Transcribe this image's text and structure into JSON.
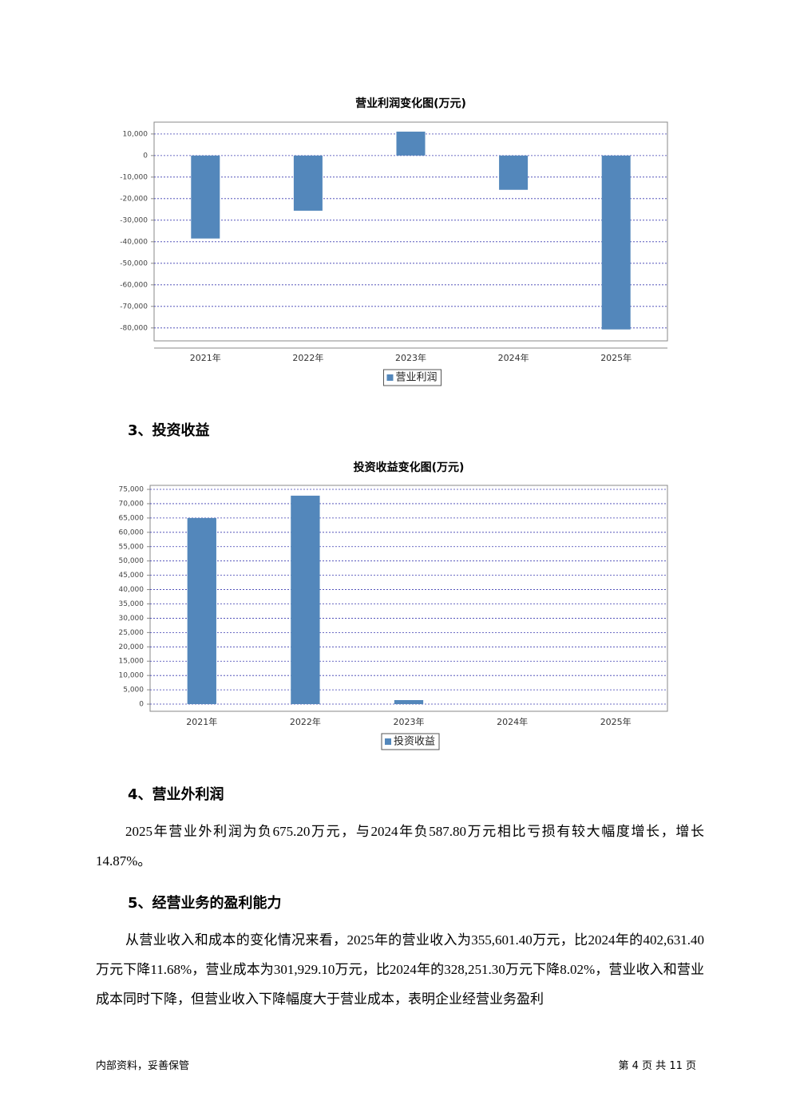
{
  "chart_data": [
    {
      "type": "bar",
      "title": "营业利润变化图(万元)",
      "categories": [
        "2021年",
        "2022年",
        "2023年",
        "2024年",
        "2025年"
      ],
      "series": [
        {
          "name": "营业利润",
          "color": "#5387bb",
          "values": [
            -38500,
            -25600,
            11100,
            -15900,
            -80700
          ]
        }
      ],
      "ylim": [
        -86000,
        15500
      ],
      "yticks": [
        {
          "value": 10000,
          "label": "10,000"
        },
        0,
        {
          "value": -10000,
          "label": "-10,000"
        },
        {
          "value": -20000,
          "label": "-20,000"
        },
        {
          "value": -30000,
          "label": "-30,000"
        },
        {
          "value": -40000,
          "label": "-40,000"
        },
        {
          "value": -50000,
          "label": "-50,000"
        },
        {
          "value": -60000,
          "label": "-60,000"
        },
        {
          "value": -70000,
          "label": "-70,000"
        },
        {
          "value": -80000,
          "label": "-80,000"
        }
      ],
      "grid": true
    },
    {
      "type": "bar",
      "title": "投资收益变化图(万元)",
      "categories": [
        "2021年",
        "2022年",
        "2023年",
        "2024年",
        "2025年"
      ],
      "series": [
        {
          "name": "投资收益",
          "color": "#5387bb",
          "values": [
            65000,
            72800,
            1400,
            0,
            0
          ]
        }
      ],
      "ylim": [
        -2500,
        76400
      ],
      "yticks": [
        0,
        {
          "value": 5000,
          "label": "5,000"
        },
        {
          "value": 10000,
          "label": "10,000"
        },
        {
          "value": 15000,
          "label": "15,000"
        },
        {
          "value": 20000,
          "label": "20,000"
        },
        {
          "value": 25000,
          "label": "25,000"
        },
        {
          "value": 30000,
          "label": "30,000"
        },
        {
          "value": 35000,
          "label": "35,000"
        },
        {
          "value": 40000,
          "label": "40,000"
        },
        {
          "value": 45000,
          "label": "45,000"
        },
        {
          "value": 50000,
          "label": "50,000"
        },
        {
          "value": 55000,
          "label": "55,000"
        },
        {
          "value": 60000,
          "label": "60,000"
        },
        {
          "value": 65000,
          "label": "65,000"
        },
        {
          "value": 70000,
          "label": "70,000"
        },
        {
          "value": 75000,
          "label": "75,000"
        }
      ],
      "grid": true
    }
  ],
  "headings": [
    "3、投资收益",
    "4、营业外利润",
    "5、经营业务的盈利能力"
  ],
  "paragraphs": [
    "2025年营业外利润为负675.20万元，与2024年负587.80万元相比亏损有较大幅度增长，增长14.87%。",
    "从营业收入和成本的变化情况来看，2025年的营业收入为355,601.40万元，比2024年的402,631.40万元下降11.68%，营业成本为301,929.10万元，比2024年的328,251.30万元下降8.02%，营业收入和营业成本同时下降，但营业收入下降幅度大于营业成本，表明企业经营业务盈利"
  ],
  "footer": {
    "left": "内部资料，妥善保管",
    "right": "第 4 页 共 11 页"
  }
}
